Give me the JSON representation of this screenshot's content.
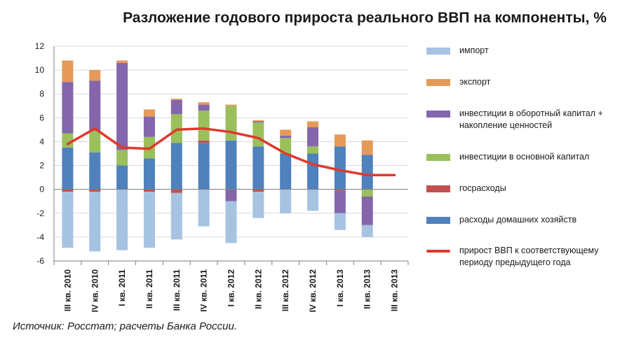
{
  "title": "Разложение годового прироста реального ВВП на компоненты, %",
  "source": "Источник: Росстат; расчеты Банка России.",
  "chart_data": {
    "type": "bar",
    "stacked": true,
    "title": "Разложение годового прироста реального ВВП на компоненты, %",
    "categories": [
      "III кв. 2010",
      "IV кв. 2010",
      "I кв. 2011",
      "II кв. 2011",
      "III кв. 2011",
      "IV кв. 2011",
      "I кв. 2012",
      "II кв. 2012",
      "III кв. 2012",
      "IV кв. 2012",
      "I кв. 2013",
      "II кв. 2013",
      "III кв. 2013"
    ],
    "ylim": [
      -6,
      12
    ],
    "yticks": [
      "-6",
      "-4",
      "-2",
      "0",
      "2",
      "4",
      "6",
      "8",
      "10",
      "12"
    ],
    "grid": true,
    "legend_position": "right",
    "series": [
      {
        "name": "импорт",
        "color": "#a6c3e2",
        "values": [
          -4.7,
          -5.0,
          -5.1,
          -4.7,
          -3.9,
          -3.1,
          -3.5,
          -2.2,
          -2.0,
          -1.8,
          -1.4,
          -1.0,
          null
        ]
      },
      {
        "name": "экспорт",
        "color": "#e59a59",
        "values": [
          1.8,
          0.9,
          0.2,
          0.6,
          0.1,
          0.2,
          0.1,
          0.1,
          0.5,
          0.5,
          1.0,
          1.2,
          null
        ]
      },
      {
        "name": "инвестиции в оборотный капитал + накопление ценностей",
        "color": "#8466ac",
        "values": [
          4.3,
          4.2,
          7.3,
          1.7,
          1.2,
          0.5,
          -1.0,
          0.1,
          0.2,
          1.6,
          -1.9,
          -2.4,
          null
        ]
      },
      {
        "name": "инвестиции в основной капитал",
        "color": "#9bbf5a",
        "values": [
          1.2,
          1.8,
          1.3,
          1.8,
          2.4,
          2.5,
          2.9,
          2.0,
          1.3,
          0.6,
          0.0,
          -0.6,
          null
        ]
      },
      {
        "name": "госрасходы",
        "color": "#c0504d",
        "values": [
          -0.2,
          -0.2,
          0.0,
          -0.2,
          -0.3,
          0.2,
          0.0,
          -0.2,
          0.0,
          0.0,
          -0.1,
          0.0,
          null
        ]
      },
      {
        "name": "расходы домашних хозяйств",
        "color": "#4f81bd",
        "values": [
          3.5,
          3.1,
          2.0,
          2.6,
          3.9,
          3.9,
          4.1,
          3.6,
          3.0,
          3.0,
          3.6,
          2.9,
          null
        ]
      }
    ],
    "line": {
      "name": "прирост ВВП к соответствующему периоду предыдущего года",
      "color": "#e0382d",
      "values": [
        3.8,
        5.1,
        3.5,
        3.4,
        5.0,
        5.1,
        4.8,
        4.3,
        3.0,
        2.1,
        1.6,
        1.2,
        1.2
      ]
    }
  }
}
